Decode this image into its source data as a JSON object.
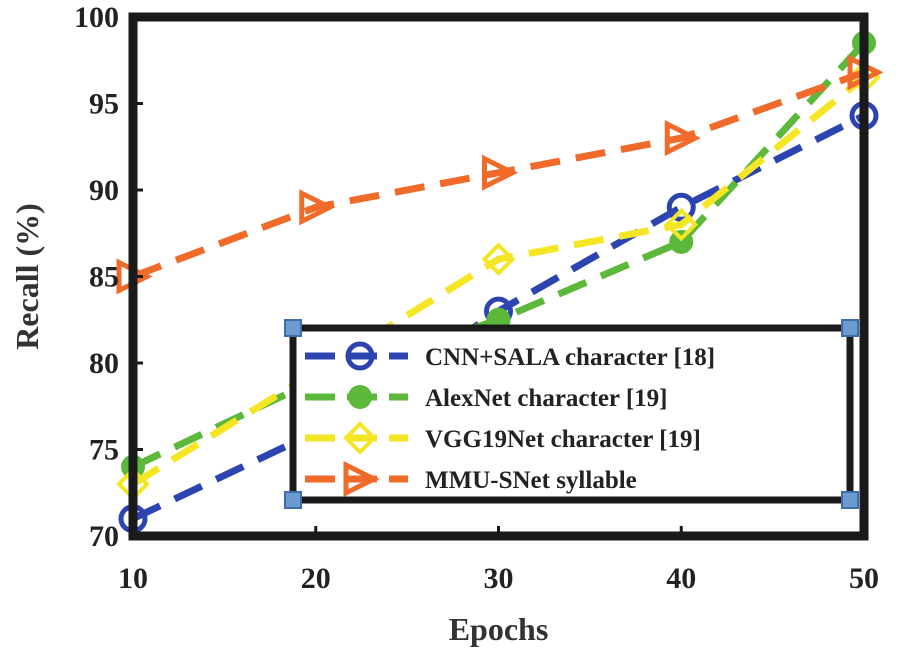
{
  "chart_data": {
    "type": "line",
    "xlabel": "Epochs",
    "ylabel": "Recall (%)",
    "x": [
      10,
      20,
      30,
      40,
      50
    ],
    "xlim": [
      10,
      50
    ],
    "ylim": [
      70,
      100
    ],
    "xticks": [
      "10",
      "20",
      "30",
      "40",
      "50"
    ],
    "yticks": [
      "70",
      "75",
      "80",
      "85",
      "90",
      "95",
      "100"
    ],
    "grid": false,
    "legend_position": "bottom-right",
    "series": [
      {
        "name": "CNN+SALA character [18]",
        "values": [
          71,
          76,
          83,
          89,
          94.3
        ],
        "color": "#2b44b0",
        "marker": "open-circle",
        "dash": "long-dash"
      },
      {
        "name": "AlexNet character [19]",
        "values": [
          74,
          79,
          82.5,
          87,
          98.5
        ],
        "color": "#5cb83a",
        "marker": "filled-circle",
        "dash": "long-dash"
      },
      {
        "name": "VGG19Net character [19]",
        "values": [
          73,
          79.5,
          86,
          88,
          96.5
        ],
        "color": "#f5e625",
        "marker": "open-diamond",
        "dash": "long-dash"
      },
      {
        "name": "MMU-SNet syllable",
        "values": [
          85,
          89,
          91,
          93,
          96.8
        ],
        "color": "#f06a2a",
        "marker": "right-triangle",
        "dash": "long-dash"
      }
    ]
  }
}
